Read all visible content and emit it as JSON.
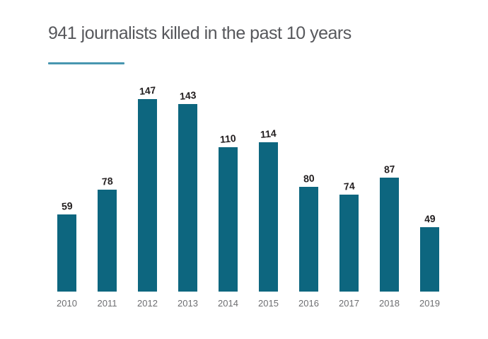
{
  "header": {
    "title": "941 journalists killed in the past 10 years"
  },
  "colors": {
    "bar": "#0d667f",
    "accent_underline": "#4896b0",
    "title_text": "#57585c",
    "value_label": "#221e1f",
    "year_label": "#6d6e71",
    "background": "#ffffff"
  },
  "chart_data": {
    "type": "bar",
    "title": "941 journalists killed in the past 10 years",
    "categories": [
      "2010",
      "2011",
      "2012",
      "2013",
      "2014",
      "2015",
      "2016",
      "2017",
      "2018",
      "2019"
    ],
    "values": [
      59,
      78,
      147,
      143,
      110,
      114,
      80,
      74,
      87,
      49
    ],
    "total": 941,
    "xlabel": "",
    "ylabel": "",
    "ylim": [
      0,
      160
    ],
    "grid": false,
    "legend": false,
    "axes_lines": false,
    "data_labels": "bold values above each bar"
  }
}
